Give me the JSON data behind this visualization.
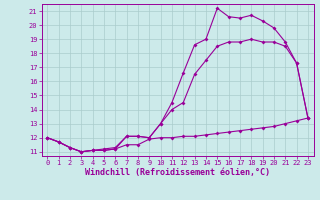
{
  "bg_color": "#cceaea",
  "line_color": "#990099",
  "grid_color": "#aacccc",
  "xlabel": "Windchill (Refroidissement éolien,°C)",
  "xlabel_color": "#990099",
  "tick_color": "#990099",
  "xlim": [
    -0.5,
    23.5
  ],
  "ylim": [
    10.7,
    21.5
  ],
  "yticks": [
    11,
    12,
    13,
    14,
    15,
    16,
    17,
    18,
    19,
    20,
    21
  ],
  "xticks": [
    0,
    1,
    2,
    3,
    4,
    5,
    6,
    7,
    8,
    9,
    10,
    11,
    12,
    13,
    14,
    15,
    16,
    17,
    18,
    19,
    20,
    21,
    22,
    23
  ],
  "line1_x": [
    0,
    1,
    2,
    3,
    4,
    5,
    6,
    7,
    8,
    9,
    10,
    11,
    12,
    13,
    14,
    15,
    16,
    17,
    18,
    19,
    20,
    21,
    22,
    23
  ],
  "line1_y": [
    12.0,
    11.7,
    11.3,
    11.0,
    11.1,
    11.1,
    11.2,
    11.5,
    11.5,
    11.9,
    12.0,
    12.0,
    12.1,
    12.1,
    12.2,
    12.3,
    12.4,
    12.5,
    12.6,
    12.7,
    12.8,
    13.0,
    13.2,
    13.4
  ],
  "line2_x": [
    0,
    1,
    2,
    3,
    4,
    5,
    6,
    7,
    8,
    9,
    10,
    11,
    12,
    13,
    14,
    15,
    16,
    17,
    18,
    19,
    20,
    21,
    22,
    23
  ],
  "line2_y": [
    12.0,
    11.7,
    11.3,
    11.0,
    11.1,
    11.2,
    11.3,
    12.1,
    12.1,
    12.0,
    13.0,
    14.0,
    14.5,
    16.5,
    17.5,
    18.5,
    18.8,
    18.8,
    19.0,
    18.8,
    18.8,
    18.5,
    17.3,
    13.4
  ],
  "line3_x": [
    0,
    1,
    2,
    3,
    4,
    5,
    6,
    7,
    8,
    9,
    10,
    11,
    12,
    13,
    14,
    15,
    16,
    17,
    18,
    19,
    20,
    21,
    22,
    23
  ],
  "line3_y": [
    12.0,
    11.7,
    11.3,
    11.0,
    11.1,
    11.1,
    11.2,
    12.1,
    12.1,
    12.0,
    13.0,
    14.5,
    16.6,
    18.6,
    19.0,
    21.2,
    20.6,
    20.5,
    20.7,
    20.3,
    19.8,
    18.8,
    17.3,
    13.4
  ]
}
